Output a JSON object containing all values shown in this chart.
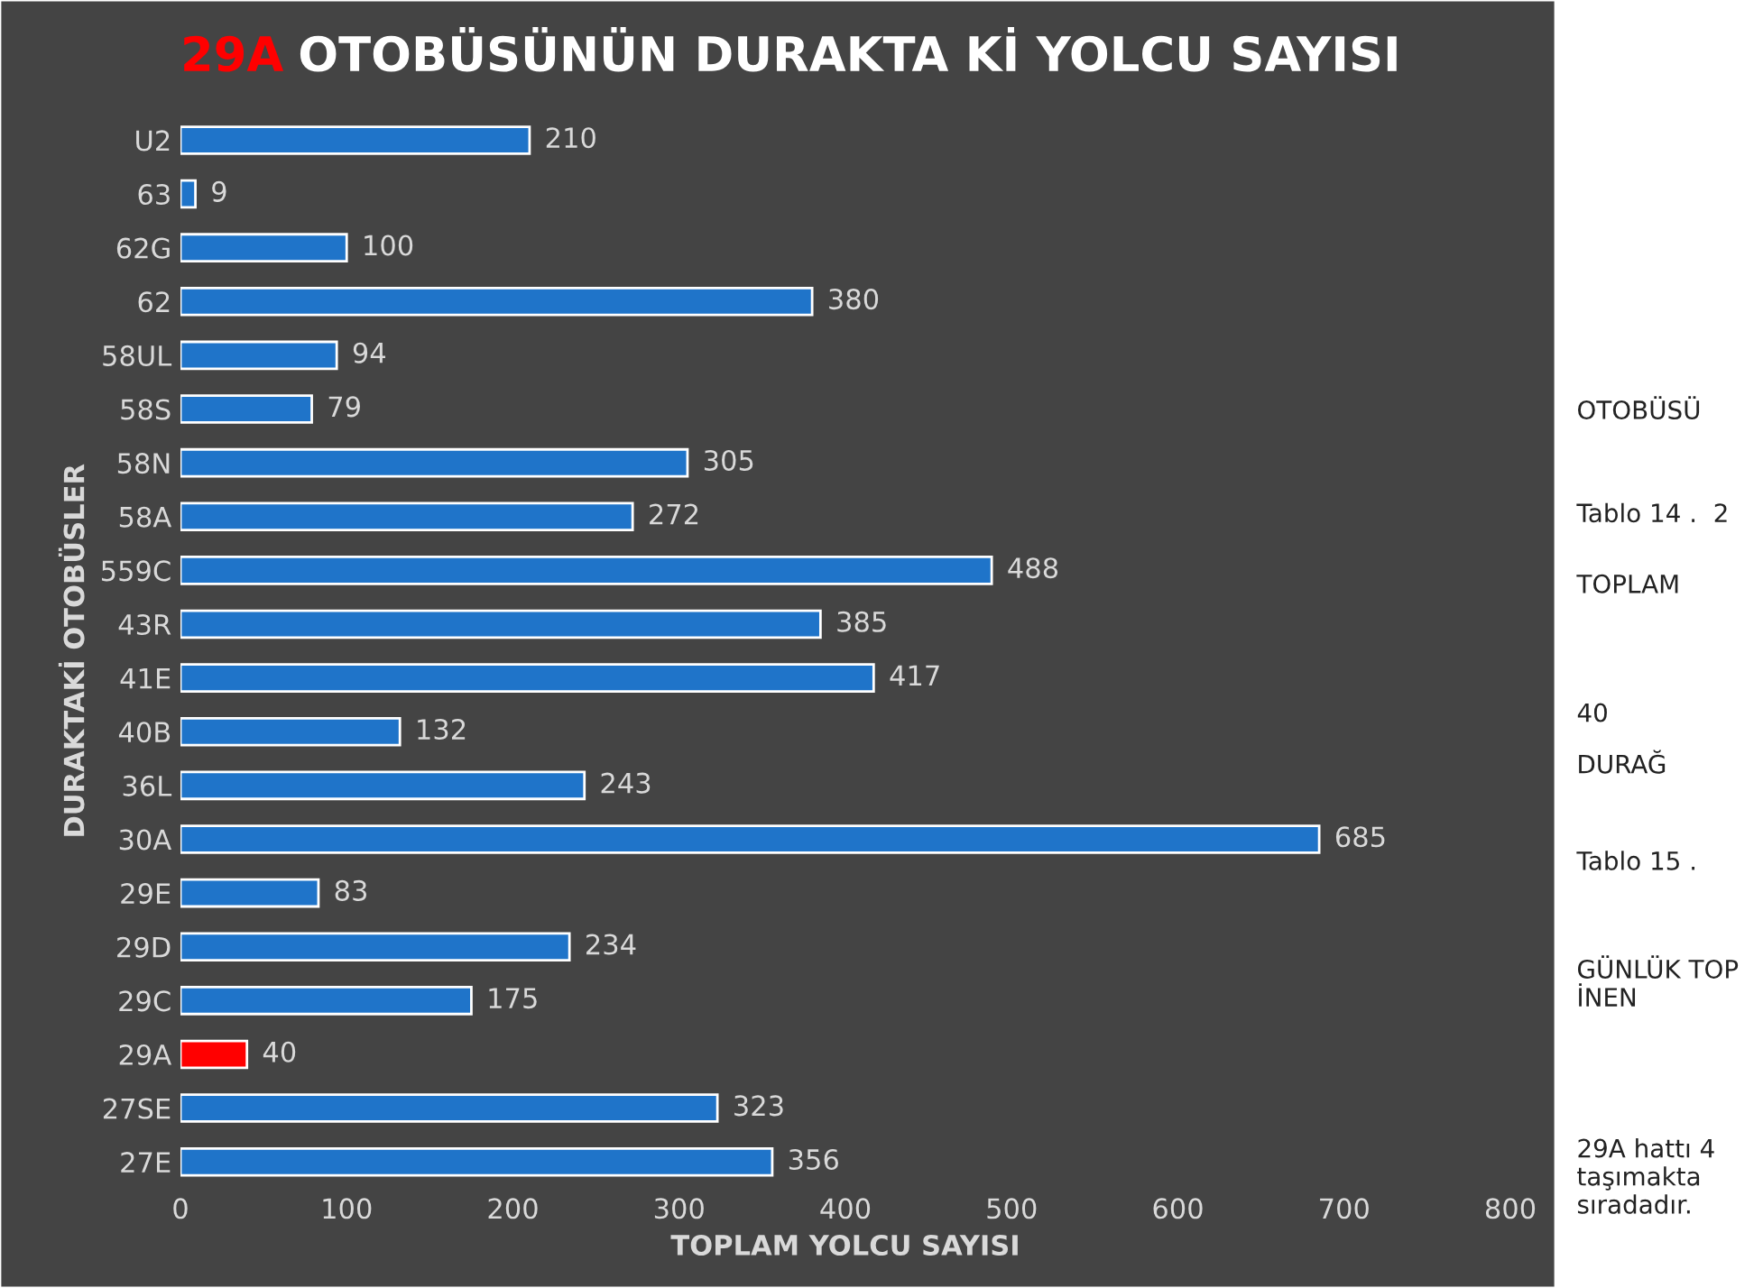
{
  "chart_data": {
    "type": "bar",
    "orientation": "horizontal",
    "title": "29A OTOBÜSÜNÜN DURAKTA Kİ YOLCU SAYISI",
    "xlabel": "TOPLAM YOLCU SAYISI",
    "ylabel": "DURAKTAKİ OTOBÜSLER",
    "categories": [
      "U2",
      "63",
      "62G",
      "62",
      "58UL",
      "58S",
      "58N",
      "58A",
      "559C",
      "43R",
      "41E",
      "40B",
      "36L",
      "30A",
      "29E",
      "29D",
      "29C",
      "29A",
      "27SE",
      "27E"
    ],
    "values": [
      210,
      9,
      100,
      380,
      94,
      79,
      305,
      272,
      488,
      385,
      417,
      132,
      243,
      685,
      83,
      234,
      175,
      40,
      323,
      356
    ],
    "colors": [
      "#1f74c9",
      "#1f74c9",
      "#1f74c9",
      "#1f74c9",
      "#1f74c9",
      "#1f74c9",
      "#1f74c9",
      "#1f74c9",
      "#1f74c9",
      "#1f74c9",
      "#1f74c9",
      "#1f74c9",
      "#1f74c9",
      "#1f74c9",
      "#1f74c9",
      "#1f74c9",
      "#1f74c9",
      "#ff0000",
      "#1f74c9",
      "#1f74c9"
    ],
    "xlim": [
      0,
      800
    ],
    "xticks": [
      0,
      100,
      200,
      300,
      400,
      500,
      600,
      700,
      800
    ],
    "data_labels": true,
    "grid": false,
    "legend": false,
    "annotations": [
      "OTOBÜSÜ",
      "Tablo 14 .  2",
      "TOPLAM",
      "40",
      "DURAĞ",
      "Tablo 15 .",
      "GÜNLÜK TOP\nİNEN",
      "29A hattı 4\ntaşımakta\nsıradadır."
    ]
  }
}
